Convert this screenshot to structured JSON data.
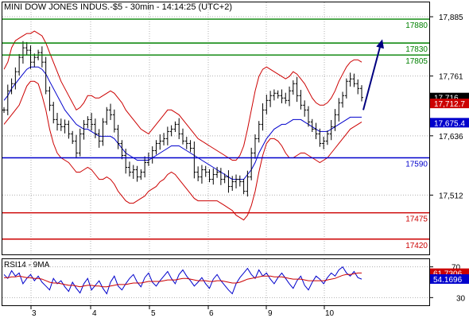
{
  "chart_data": [
    {
      "type": "candlestick",
      "title": "MINI DOW JONES INDUS.-$5 - 30min - 14:14:25 (UTC+2)",
      "x_day_labels": [
        "3",
        "4",
        "5",
        "6",
        "9",
        "10"
      ],
      "y_ticks": [
        "17,885",
        "17,761",
        "17,636",
        "17,512"
      ],
      "ylim": [
        17388,
        17915
      ],
      "resistance_levels": [
        {
          "value": 17880,
          "label": "17880"
        },
        {
          "value": 17830,
          "label": "17830"
        },
        {
          "value": 17805,
          "label": "17805"
        }
      ],
      "pivot_level": {
        "value": 17590,
        "label": "17590"
      },
      "support_levels": [
        {
          "value": 17475,
          "label": "17475"
        },
        {
          "value": 17420,
          "label": "17420"
        }
      ],
      "last_price_label": "17,716",
      "indicator_labels": [
        "17,712.7",
        "17,675.4"
      ],
      "forecast_arrow": {
        "from": 17690,
        "to": 17838
      },
      "price_path": [
        17690,
        17730,
        17745,
        17770,
        17800,
        17820,
        17815,
        17790,
        17800,
        17810,
        17790,
        17730,
        17700,
        17670,
        17660,
        17655,
        17660,
        17640,
        17625,
        17600,
        17640,
        17660,
        17670,
        17660,
        17640,
        17625,
        17665,
        17690,
        17680,
        17650,
        17620,
        17595,
        17570,
        17560,
        17565,
        17550,
        17560,
        17580,
        17590,
        17605,
        17620,
        17625,
        17630,
        17645,
        17650,
        17660,
        17640,
        17625,
        17620,
        17610,
        17560,
        17550,
        17565,
        17560,
        17545,
        17555,
        17560,
        17545,
        17550,
        17530,
        17540,
        17545,
        17540,
        17520,
        17550,
        17600,
        17630,
        17660,
        17690,
        17710,
        17720,
        17725,
        17720,
        17715,
        17710,
        17730,
        17745,
        17720,
        17700,
        17690,
        17665,
        17650,
        17640,
        17620,
        17625,
        17640,
        17655,
        17680,
        17705,
        17720,
        17750,
        17755,
        17745,
        17735,
        17716
      ],
      "bollinger_upper": [
        17775,
        17790,
        17820,
        17835,
        17840,
        17845,
        17850,
        17850,
        17855,
        17850,
        17845,
        17830,
        17810,
        17790,
        17770,
        17750,
        17735,
        17720,
        17705,
        17690,
        17695,
        17705,
        17720,
        17720,
        17715,
        17715,
        17720,
        17725,
        17730,
        17725,
        17715,
        17705,
        17690,
        17680,
        17670,
        17660,
        17650,
        17645,
        17640,
        17650,
        17660,
        17670,
        17680,
        17690,
        17690,
        17685,
        17680,
        17670,
        17660,
        17650,
        17640,
        17630,
        17625,
        17620,
        17615,
        17610,
        17605,
        17600,
        17595,
        17590,
        17585,
        17585,
        17595,
        17615,
        17650,
        17690,
        17730,
        17760,
        17775,
        17780,
        17775,
        17770,
        17765,
        17760,
        17755,
        17760,
        17770,
        17765,
        17755,
        17745,
        17730,
        17715,
        17705,
        17700,
        17700,
        17705,
        17715,
        17730,
        17750,
        17765,
        17780,
        17790,
        17795,
        17795,
        17790
      ],
      "bollinger_lower": [
        17660,
        17670,
        17680,
        17690,
        17700,
        17720,
        17740,
        17750,
        17750,
        17745,
        17720,
        17690,
        17650,
        17620,
        17600,
        17590,
        17585,
        17580,
        17570,
        17560,
        17560,
        17565,
        17570,
        17565,
        17555,
        17545,
        17545,
        17550,
        17545,
        17535,
        17520,
        17510,
        17500,
        17495,
        17495,
        17500,
        17505,
        17510,
        17520,
        17525,
        17530,
        17540,
        17545,
        17555,
        17560,
        17555,
        17545,
        17535,
        17525,
        17515,
        17505,
        17500,
        17500,
        17500,
        17500,
        17500,
        17500,
        17495,
        17490,
        17485,
        17480,
        17470,
        17465,
        17460,
        17470,
        17490,
        17520,
        17560,
        17595,
        17620,
        17630,
        17630,
        17625,
        17615,
        17600,
        17590,
        17590,
        17595,
        17600,
        17600,
        17595,
        17590,
        17585,
        17580,
        17585,
        17590,
        17600,
        17610,
        17620,
        17630,
        17640,
        17650,
        17655,
        17660,
        17665
      ],
      "moving_average": [
        17710,
        17720,
        17735,
        17745,
        17755,
        17765,
        17775,
        17780,
        17780,
        17780,
        17775,
        17765,
        17750,
        17735,
        17720,
        17705,
        17690,
        17680,
        17670,
        17660,
        17655,
        17650,
        17650,
        17645,
        17640,
        17635,
        17635,
        17635,
        17635,
        17630,
        17620,
        17610,
        17600,
        17595,
        17590,
        17585,
        17585,
        17585,
        17585,
        17590,
        17595,
        17600,
        17605,
        17610,
        17615,
        17615,
        17615,
        17610,
        17605,
        17600,
        17595,
        17590,
        17585,
        17580,
        17575,
        17570,
        17565,
        17560,
        17555,
        17550,
        17545,
        17545,
        17545,
        17545,
        17555,
        17565,
        17580,
        17600,
        17615,
        17630,
        17640,
        17650,
        17655,
        17660,
        17660,
        17665,
        17670,
        17670,
        17670,
        17665,
        17660,
        17655,
        17650,
        17645,
        17645,
        17645,
        17650,
        17655,
        17660,
        17665,
        17670,
        17675,
        17675,
        17675,
        17675
      ]
    },
    {
      "type": "line",
      "title": "RSI14 - 9MA",
      "y_ticks": [
        "70",
        "30"
      ],
      "ylim": [
        20,
        80
      ],
      "current_labels": [
        "61.7306",
        "54.1696"
      ],
      "rsi": [
        60,
        55,
        65,
        58,
        62,
        48,
        55,
        60,
        52,
        58,
        50,
        45,
        40,
        55,
        48,
        52,
        44,
        38,
        50,
        42,
        36,
        48,
        55,
        40,
        46,
        52,
        42,
        35,
        50,
        58,
        45,
        40,
        48,
        55,
        60,
        50,
        44,
        56,
        62,
        50,
        45,
        52,
        58,
        64,
        55,
        48,
        60,
        66,
        58,
        52,
        45,
        50,
        56,
        48,
        42,
        54,
        60,
        52,
        46,
        40,
        35,
        48,
        56,
        62,
        68,
        60,
        55,
        66,
        58,
        62,
        54,
        48,
        56,
        62,
        55,
        48,
        42,
        52,
        58,
        46,
        40,
        50,
        58,
        54,
        48,
        56,
        62,
        58,
        66,
        70,
        62,
        58,
        64,
        56,
        54
      ],
      "ma": [
        56,
        56,
        57,
        57,
        58,
        57,
        56,
        56,
        55,
        55,
        54,
        52,
        50,
        49,
        49,
        48,
        47,
        46,
        46,
        45,
        44,
        45,
        46,
        46,
        45,
        45,
        44,
        44,
        45,
        46,
        47,
        47,
        47,
        48,
        49,
        49,
        49,
        50,
        51,
        51,
        51,
        51,
        52,
        53,
        53,
        53,
        54,
        55,
        55,
        54,
        53,
        52,
        52,
        52,
        51,
        51,
        52,
        52,
        51,
        50,
        49,
        49,
        50,
        52,
        54,
        55,
        56,
        57,
        58,
        58,
        58,
        57,
        57,
        57,
        56,
        55,
        54,
        54,
        54,
        53,
        52,
        52,
        52,
        52,
        52,
        53,
        54,
        55,
        57,
        59,
        60,
        60,
        61,
        62,
        62
      ]
    }
  ]
}
